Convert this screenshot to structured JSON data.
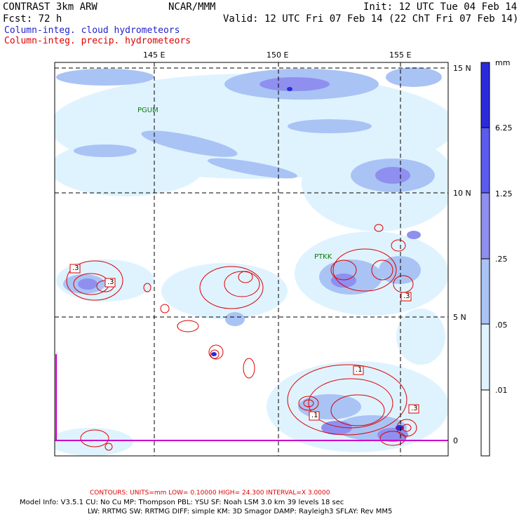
{
  "header": {
    "model": "CONTRAST  3km ARW",
    "center": "NCAR/MMM",
    "init": "Init: 12 UTC Tue 04 Feb 14",
    "fcst": "Fcst:   72 h",
    "valid": "Valid: 12 UTC Fri 07 Feb 14 (22 ChT Fri 07 Feb 14)",
    "field1": "Column-integ. cloud hydrometeors",
    "field2": "Column-integ. precip. hydrometeors"
  },
  "axes": {
    "lon_labels": [
      "145 E",
      "150 E",
      "155 E"
    ],
    "lat_labels": [
      "15 N",
      "10 N",
      "5 N",
      "0"
    ]
  },
  "stations": [
    "PGUM",
    "PTKK"
  ],
  "contour_labels": [
    ".3",
    ".3",
    ".1",
    ".3",
    ".1",
    ".3"
  ],
  "colorbar": {
    "unit": "mm",
    "levels": [
      ".01",
      ".05",
      ".25",
      "1.25",
      "6.25"
    ],
    "colors": [
      "#ffffff",
      "#dff3ff",
      "#a9c3f5",
      "#8f8ff0",
      "#5b5bee",
      "#2b2bdb",
      "#0000bf"
    ]
  },
  "footer": {
    "contours": "CONTOURS:  UNITS=mm  LOW= 0.10000     HIGH=  24.300     INTERVAL=X  3.0000",
    "info1": "Model Info: V3.5.1    CU: No Cu     MP: Thompson     PBL: YSU        SF: Noah LSM     3.0 km   39 levels    18 sec",
    "info2": "LW: RRTMG     SW: RRTMG    DIFF: simple KM: 3D Smagor DAMP: Rayleigh3   SFLAY: Rev MM5"
  }
}
